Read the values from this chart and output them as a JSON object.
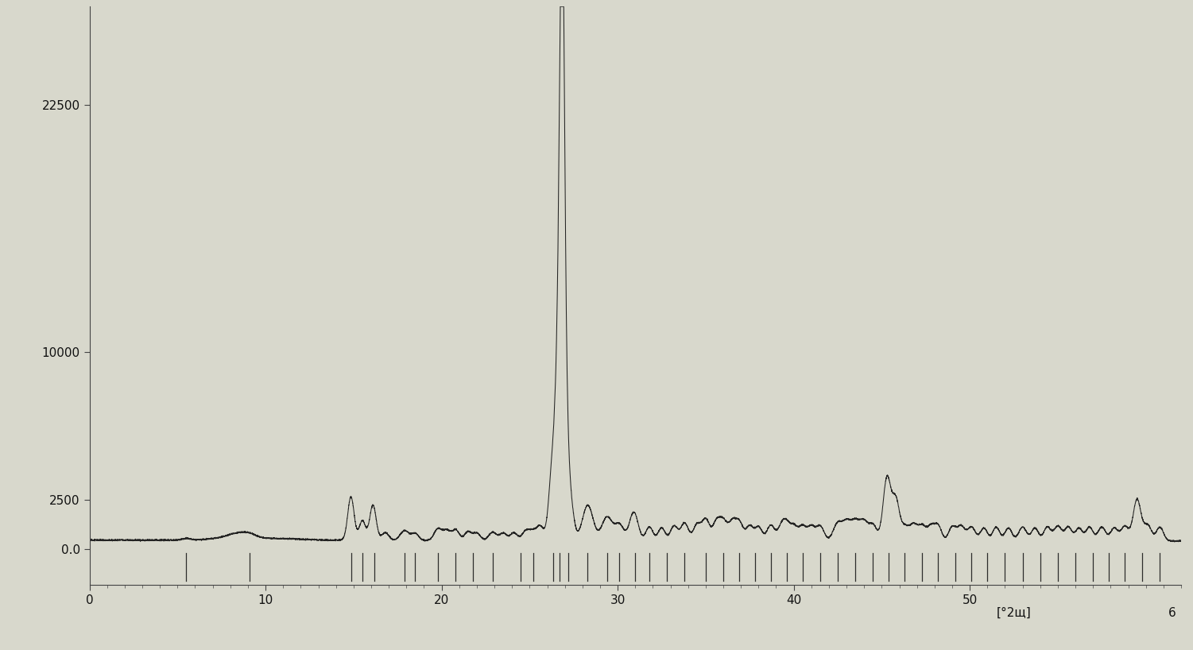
{
  "title": "",
  "xlabel": "[°2щ]",
  "ylabel": "",
  "xlim": [
    0,
    62
  ],
  "ylim": [
    -1800,
    27500
  ],
  "yticks": [
    0,
    2500,
    10000,
    22500
  ],
  "ytick_labels": [
    "0.0",
    "2500",
    "10000",
    "22500"
  ],
  "xticks": [
    0,
    10,
    20,
    30,
    40,
    50
  ],
  "xtick_labels": [
    "0",
    "10",
    "20",
    "30",
    "40",
    "50"
  ],
  "background_color": "#d8d8cc",
  "line_color": "#1a1a1a",
  "stick_positions": [
    5.5,
    9.1,
    14.85,
    15.5,
    16.2,
    17.9,
    18.5,
    19.8,
    20.8,
    21.8,
    22.9,
    24.5,
    25.2,
    26.35,
    26.7,
    27.2,
    28.3,
    29.4,
    30.1,
    31.0,
    31.8,
    32.8,
    33.8,
    35.0,
    36.0,
    36.9,
    37.8,
    38.7,
    39.6,
    40.5,
    41.5,
    42.5,
    43.5,
    44.5,
    45.4,
    46.3,
    47.3,
    48.2,
    49.2,
    50.1,
    51.0,
    52.0,
    53.0,
    54.0,
    55.0,
    56.0,
    57.0,
    57.9,
    58.8,
    59.8,
    60.8
  ],
  "figsize": [
    15.01,
    8.18
  ],
  "dpi": 100
}
